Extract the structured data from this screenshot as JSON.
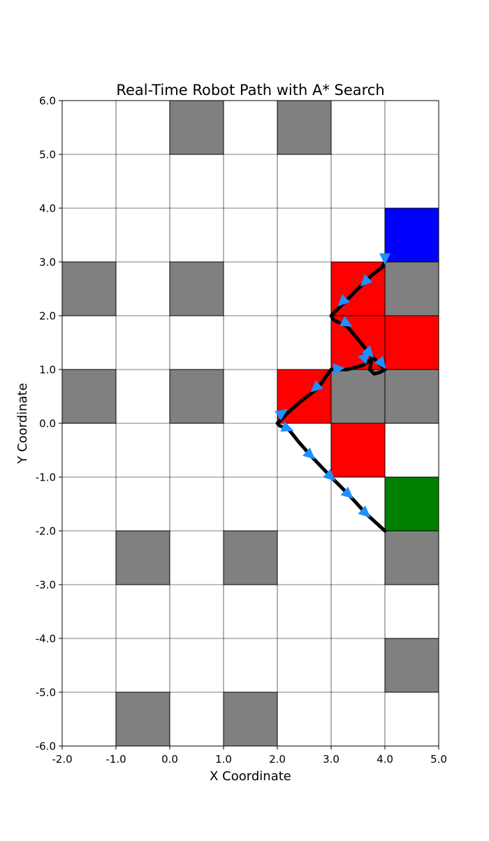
{
  "chart_data": {
    "type": "grid-path",
    "title": "Real-Time Robot Path with A* Search",
    "xlabel": "X Coordinate",
    "ylabel": "Y Coordinate",
    "xlim": [
      -2,
      5
    ],
    "ylim": [
      -6,
      6
    ],
    "grid": true,
    "xticks": [
      -2,
      -1,
      0,
      1,
      2,
      3,
      4,
      5
    ],
    "yticks": [
      -6,
      -5,
      -4,
      -3,
      -2,
      -1,
      0,
      1,
      2,
      3,
      4,
      5,
      6
    ],
    "tick_format": "1 decimal",
    "colors": {
      "obstacle": "#808080",
      "explored": "#ff0000",
      "goal": "#0000ff",
      "start": "#008000",
      "path": "#000000",
      "arrow": "#1e90ff",
      "grid": "#000000"
    },
    "obstacle_cells": [
      [
        0,
        5
      ],
      [
        2,
        5
      ],
      [
        -2,
        2
      ],
      [
        0,
        2
      ],
      [
        4,
        2
      ],
      [
        -2,
        0
      ],
      [
        0,
        0
      ],
      [
        3,
        0
      ],
      [
        4,
        0
      ],
      [
        -1,
        -3
      ],
      [
        1,
        -3
      ],
      [
        4,
        -3
      ],
      [
        4,
        -5
      ],
      [
        -1,
        -6
      ],
      [
        1,
        -6
      ]
    ],
    "explored_cells": [
      [
        3,
        2
      ],
      [
        3,
        1
      ],
      [
        4,
        1
      ],
      [
        2,
        0
      ],
      [
        3,
        -1
      ]
    ],
    "goal_cell": [
      4,
      3
    ],
    "start_cell": [
      4,
      -2
    ],
    "path": [
      [
        4.0,
        -2.0
      ],
      [
        3.65,
        -1.68
      ],
      [
        3.33,
        -1.33
      ],
      [
        3.0,
        -1.0
      ],
      [
        2.62,
        -0.6
      ],
      [
        2.4,
        -0.35
      ],
      [
        2.2,
        -0.1
      ],
      [
        2.05,
        -0.05
      ],
      [
        2.0,
        0.0
      ],
      [
        2.2,
        0.2
      ],
      [
        2.45,
        0.42
      ],
      [
        2.75,
        0.65
      ],
      [
        3.0,
        1.0
      ],
      [
        3.3,
        1.0
      ],
      [
        3.6,
        1.08
      ],
      [
        3.75,
        1.2
      ],
      [
        3.72,
        1.0
      ],
      [
        3.8,
        0.92
      ],
      [
        3.92,
        0.95
      ],
      [
        4.0,
        1.0
      ],
      [
        3.75,
        1.25
      ],
      [
        3.55,
        1.5
      ],
      [
        3.3,
        1.8
      ],
      [
        3.05,
        1.92
      ],
      [
        3.0,
        2.0
      ],
      [
        3.2,
        2.2
      ],
      [
        3.5,
        2.5
      ],
      [
        3.75,
        2.75
      ],
      [
        3.95,
        2.9
      ],
      [
        4.0,
        3.0
      ]
    ],
    "arrows": [
      {
        "x": 3.65,
        "y": -1.68,
        "dx": 0.18,
        "dy": -0.16
      },
      {
        "x": 3.33,
        "y": -1.33,
        "dx": 0.18,
        "dy": -0.16
      },
      {
        "x": 3.0,
        "y": -1.0,
        "dx": 0.16,
        "dy": -0.14
      },
      {
        "x": 2.62,
        "y": -0.6,
        "dx": 0.18,
        "dy": -0.16
      },
      {
        "x": 2.2,
        "y": -0.1,
        "dx": 0.2,
        "dy": -0.08
      },
      {
        "x": 2.1,
        "y": 0.2,
        "dx": 0.2,
        "dy": 0.14
      },
      {
        "x": 2.7,
        "y": 0.65,
        "dx": -0.18,
        "dy": -0.16
      },
      {
        "x": 3.15,
        "y": 1.02,
        "dx": 0.2,
        "dy": 0.02
      },
      {
        "x": 3.72,
        "y": 1.3,
        "dx": 0.14,
        "dy": -0.16
      },
      {
        "x": 3.65,
        "y": 1.25,
        "dx": 0.14,
        "dy": 0.14
      },
      {
        "x": 3.95,
        "y": 1.1,
        "dx": 0.12,
        "dy": -0.16
      },
      {
        "x": 3.3,
        "y": 1.85,
        "dx": 0.18,
        "dy": -0.1
      },
      {
        "x": 3.2,
        "y": 2.25,
        "dx": -0.18,
        "dy": -0.18
      },
      {
        "x": 3.62,
        "y": 2.62,
        "dx": -0.18,
        "dy": -0.18
      },
      {
        "x": 4.0,
        "y": 3.05,
        "dx": 0.0,
        "dy": -0.16
      }
    ]
  }
}
